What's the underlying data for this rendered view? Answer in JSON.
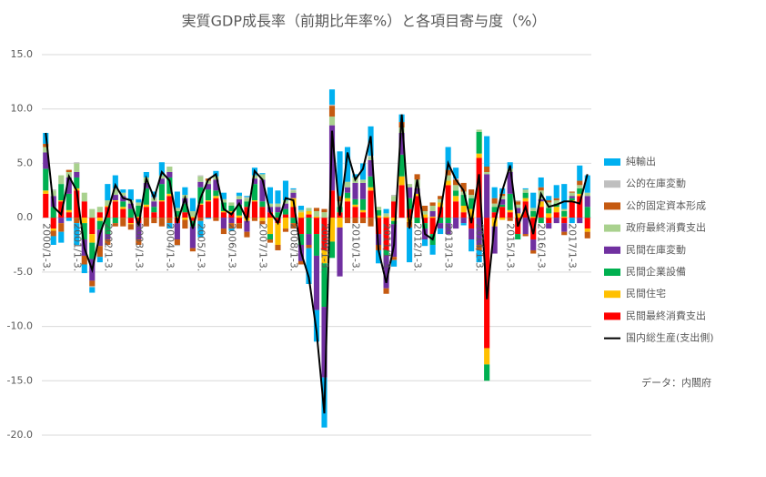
{
  "chart_data": {
    "type": "bar",
    "stacked": true,
    "title": "実質GDP成長率（前期比年率%）と各項目寄与度（%）",
    "note": "データ：内閣府",
    "categories": [
      "2000/1-3.",
      null,
      null,
      null,
      "2001/1-3.",
      null,
      null,
      null,
      "2002/1-3.",
      null,
      null,
      null,
      "2003/1-3.",
      null,
      null,
      null,
      "2004/1-3.",
      null,
      null,
      null,
      "2005/1-3.",
      null,
      null,
      null,
      "2006/1-3.",
      null,
      null,
      null,
      "2007/1-3.",
      null,
      null,
      null,
      "2008/1-3.",
      null,
      null,
      null,
      "2009/1-3.",
      null,
      null,
      null,
      "2010/1-3.",
      null,
      null,
      null,
      "2011/1-3.",
      null,
      null,
      null,
      "2012/1-3.",
      null,
      null,
      null,
      "2013/1-3.",
      null,
      null,
      null,
      "2014/1-3.",
      null,
      null,
      null,
      "2015/1-3.",
      null,
      null,
      null,
      "2016/1-3.",
      null,
      null,
      null,
      "2017/1-3.",
      null,
      null
    ],
    "ylim": [
      -20,
      15
    ],
    "yticks": [
      {
        "value": 15,
        "label": "15.0"
      },
      {
        "value": 10,
        "label": "10.0"
      },
      {
        "value": 5,
        "label": "5.0"
      },
      {
        "value": 0,
        "label": "0.0"
      },
      {
        "value": -5,
        "label": "-5.0"
      },
      {
        "value": -10,
        "label": "-10.0"
      },
      {
        "value": -15,
        "label": "-15.0"
      },
      {
        "value": -20,
        "label": "-20.0"
      }
    ],
    "grid": true,
    "legend": "right",
    "series": [
      {
        "name": "純輸出",
        "color": "#00b0f0",
        "values": [
          1.0,
          -0.8,
          -1.0,
          -0.3,
          -2.0,
          -0.8,
          -0.5,
          -0.5,
          1.5,
          1.2,
          0.3,
          1.0,
          0.3,
          0.5,
          0.5,
          1.2,
          -0.5,
          1.5,
          0.7,
          1.2,
          -1.5,
          -0.1,
          0.5,
          0.6,
          -0.2,
          0.3,
          0.1,
          0.7,
          0.1,
          1.5,
          1.2,
          1.8,
          0.1,
          0.4,
          -3.3,
          -2.9,
          -4.6,
          1.4,
          4.1,
          3.2,
          0.3,
          1.5,
          2.7,
          -1.2,
          0.4,
          -0.6,
          0.7,
          -3.2,
          0.0,
          -0.6,
          -0.9,
          -0.5,
          2.1,
          1.0,
          -0.2,
          -1.1,
          -1.1,
          2.8,
          1.0,
          0.5,
          0.6,
          0.0,
          0.1,
          1.4,
          0.9,
          0.4,
          1.2,
          2.3,
          -0.5,
          1.4,
          1.6
        ]
      },
      {
        "name": "公的在庫変動",
        "color": "#bfbfbf",
        "values": [
          0.0,
          0.1,
          0.0,
          0.0,
          0.1,
          0.0,
          -0.1,
          0.0,
          0.0,
          0.1,
          0.0,
          0.0,
          0.0,
          0.0,
          0.1,
          0.0,
          0.0,
          -0.1,
          0.0,
          0.0,
          0.1,
          0.0,
          0.0,
          0.0,
          0.0,
          0.0,
          0.1,
          0.0,
          0.0,
          0.0,
          0.0,
          0.0,
          0.1,
          0.0,
          0.0,
          0.0,
          0.0,
          0.1,
          0.0,
          0.0,
          0.0,
          0.0,
          0.1,
          0.0,
          0.0,
          0.1,
          0.0,
          0.0,
          0.0,
          0.0,
          0.0,
          0.0,
          0.0,
          0.1,
          0.0,
          0.0,
          0.0,
          0.0,
          0.0,
          0.0,
          0.0,
          0.1,
          0.0,
          0.0,
          0.0,
          0.0,
          0.0,
          0.0,
          0.0,
          0.0,
          0.0
        ]
      },
      {
        "name": "公的固定資本形成",
        "color": "#c55a11",
        "values": [
          0.3,
          -0.5,
          -0.8,
          0.2,
          -0.5,
          -0.8,
          -0.5,
          -1.0,
          -0.5,
          -0.3,
          -0.8,
          -0.5,
          -0.5,
          -0.8,
          -0.5,
          -0.8,
          -0.5,
          -0.5,
          -0.8,
          -0.3,
          -0.3,
          0.2,
          -0.3,
          -0.5,
          -0.5,
          -0.5,
          -0.5,
          -0.3,
          -0.3,
          -0.3,
          -0.5,
          -0.3,
          -0.5,
          -0.3,
          -0.3,
          0.3,
          0.3,
          1.0,
          0.5,
          -0.5,
          -0.5,
          -0.5,
          -0.8,
          -0.5,
          -0.5,
          -0.3,
          0.5,
          -0.5,
          0.5,
          0.5,
          0.3,
          0.3,
          0.5,
          0.5,
          0.8,
          0.5,
          -0.5,
          0.5,
          0.5,
          0.2,
          -0.3,
          0.3,
          -0.2,
          -0.3,
          0.3,
          0.2,
          0.2,
          -0.3,
          0.1,
          0.4,
          -0.6
        ]
      },
      {
        "name": "政府最終消費支出",
        "color": "#a9d18e",
        "values": [
          0.5,
          0.5,
          0.8,
          0.5,
          0.8,
          0.8,
          0.8,
          0.5,
          0.5,
          0.5,
          0.3,
          0.3,
          0.3,
          0.5,
          0.3,
          0.3,
          0.5,
          0.3,
          0.3,
          0.5,
          0.5,
          0.3,
          0.3,
          0.3,
          0.3,
          0.3,
          0.3,
          0.3,
          0.5,
          0.3,
          0.3,
          0.3,
          0.2,
          0.2,
          0.3,
          0.5,
          0.5,
          0.8,
          0.5,
          0.5,
          0.5,
          0.3,
          0.3,
          0.3,
          0.3,
          0.5,
          0.5,
          0.3,
          0.8,
          0.3,
          0.5,
          0.3,
          0.5,
          0.5,
          0.3,
          0.3,
          0.2,
          0.2,
          0.3,
          0.3,
          0.3,
          0.3,
          0.3,
          0.3,
          0.8,
          0.5,
          0.3,
          0.2,
          0.3,
          0.3,
          0.3
        ]
      },
      {
        "name": "民間在庫変動",
        "color": "#7030a0",
        "values": [
          1.5,
          1.0,
          -0.5,
          1.5,
          0.5,
          -1.5,
          -2.0,
          -1.5,
          -0.5,
          0.5,
          0.5,
          0.5,
          -1.5,
          0.5,
          0.5,
          0.5,
          0.5,
          -1.5,
          0.5,
          -2.0,
          0.5,
          0.5,
          1.0,
          -1.0,
          -0.5,
          0.5,
          -1.0,
          0.5,
          2.0,
          0.5,
          0.5,
          0.5,
          0.5,
          -1.5,
          -1.0,
          -5.0,
          -6.5,
          6.0,
          -4.5,
          0.5,
          1.5,
          1.5,
          1.5,
          -1.0,
          -3.0,
          -3.0,
          2.0,
          1.0,
          0.5,
          -1.0,
          0.5,
          -0.5,
          -1.0,
          -1.0,
          -0.5,
          -1.0,
          -2.5,
          4.0,
          -2.5,
          0.5,
          2.0,
          0.5,
          -1.5,
          -1.0,
          0.2,
          -0.5,
          -0.5,
          -0.8,
          0.2,
          -0.5,
          1.0
        ]
      },
      {
        "name": "民間企業設備",
        "color": "#00b050",
        "values": [
          2.0,
          1.0,
          1.5,
          1.5,
          1.0,
          -1.5,
          -1.5,
          -0.8,
          -1.5,
          -0.5,
          0.5,
          0.8,
          1.0,
          1.5,
          0.5,
          1.5,
          1.5,
          0.5,
          0.8,
          -0.5,
          1.5,
          1.0,
          0.5,
          0.8,
          0.5,
          1.0,
          0.5,
          1.5,
          0.5,
          -0.5,
          0.5,
          0.5,
          -0.5,
          -1.0,
          -1.5,
          -2.0,
          -4.0,
          -1.5,
          0.5,
          0.5,
          0.5,
          1.0,
          1.0,
          0.5,
          -0.5,
          -0.3,
          2.0,
          1.0,
          -0.5,
          -0.5,
          -1.0,
          -0.5,
          -0.5,
          0.5,
          1.0,
          1.0,
          2.0,
          -1.5,
          0.5,
          0.2,
          1.5,
          -0.5,
          0.5,
          0.5,
          -0.5,
          0.5,
          0.3,
          0.5,
          0.2,
          0.5,
          1.0
        ]
      },
      {
        "name": "民間住宅",
        "color": "#ffc000",
        "values": [
          0.3,
          -0.2,
          0.1,
          0.2,
          0.2,
          -0.5,
          -0.8,
          -0.3,
          0.1,
          0.1,
          0.2,
          -0.1,
          0.1,
          0.2,
          0.0,
          0.1,
          0.2,
          0.1,
          -0.2,
          0.1,
          0.1,
          0.1,
          0.2,
          0.1,
          0.1,
          0.2,
          -0.3,
          0.1,
          -0.3,
          -1.5,
          -2.0,
          -1.0,
          0.8,
          0.5,
          0.3,
          0.1,
          -1.2,
          -2.2,
          -0.9,
          0.3,
          0.2,
          0.2,
          0.3,
          0.2,
          0.1,
          -0.3,
          0.8,
          -0.4,
          0.2,
          0.3,
          0.1,
          0.4,
          0.4,
          0.5,
          0.6,
          0.8,
          0.4,
          -1.5,
          -0.8,
          -0.2,
          0.2,
          0.4,
          0.3,
          0.1,
          0.5,
          0.4,
          0.5,
          0.1,
          0.1,
          0.2,
          -0.3
        ]
      },
      {
        "name": "民間最終消費支出",
        "color": "#ff0000",
        "values": [
          2.2,
          -1.0,
          1.5,
          0.5,
          2.5,
          1.5,
          -1.5,
          0.5,
          1.0,
          1.5,
          0.8,
          -0.5,
          -0.5,
          1.0,
          0.5,
          1.5,
          2.0,
          -0.5,
          0.5,
          -0.3,
          1.2,
          1.5,
          1.8,
          0.5,
          0.5,
          -0.5,
          1.0,
          1.5,
          1.0,
          0.5,
          -0.5,
          0.3,
          1.0,
          -1.5,
          0.3,
          -1.5,
          -3.0,
          2.5,
          0.5,
          1.5,
          1.0,
          0.5,
          2.5,
          -1.5,
          -3.0,
          1.5,
          3.0,
          0.8,
          2.0,
          -0.5,
          -1.5,
          1.0,
          3.0,
          1.5,
          0.5,
          -1.0,
          5.5,
          -12.0,
          0.5,
          1.0,
          0.5,
          -1.5,
          1.5,
          -2.0,
          1.0,
          -0.5,
          0.5,
          -0.5,
          1.5,
          2.0,
          -1.0
        ]
      },
      {
        "name": "国内総生産(支出側)",
        "color": "#000000",
        "kind": "line",
        "values": [
          7.8,
          1.0,
          0.3,
          3.8,
          2.5,
          -2.8,
          -4.8,
          -1.5,
          0.5,
          3.0,
          1.8,
          1.6,
          -0.8,
          3.6,
          1.8,
          4.2,
          3.4,
          -0.5,
          1.8,
          -1.0,
          1.8,
          3.5,
          4.0,
          0.8,
          0.3,
          1.3,
          -0.2,
          4.3,
          3.5,
          0.5,
          -0.5,
          1.8,
          1.6,
          -3.2,
          -5.5,
          -10.5,
          -18.0,
          8.0,
          0.2,
          6.0,
          3.5,
          4.5,
          7.5,
          -3.0,
          -6.0,
          -2.5,
          9.5,
          -1.0,
          3.5,
          -1.5,
          -2.0,
          0.5,
          5.0,
          3.5,
          2.5,
          -0.5,
          4.0,
          -7.5,
          -0.5,
          2.5,
          4.8,
          -0.8,
          1.0,
          -1.5,
          2.2,
          1.0,
          1.2,
          1.5,
          1.5,
          1.3,
          4.0
        ]
      }
    ]
  }
}
